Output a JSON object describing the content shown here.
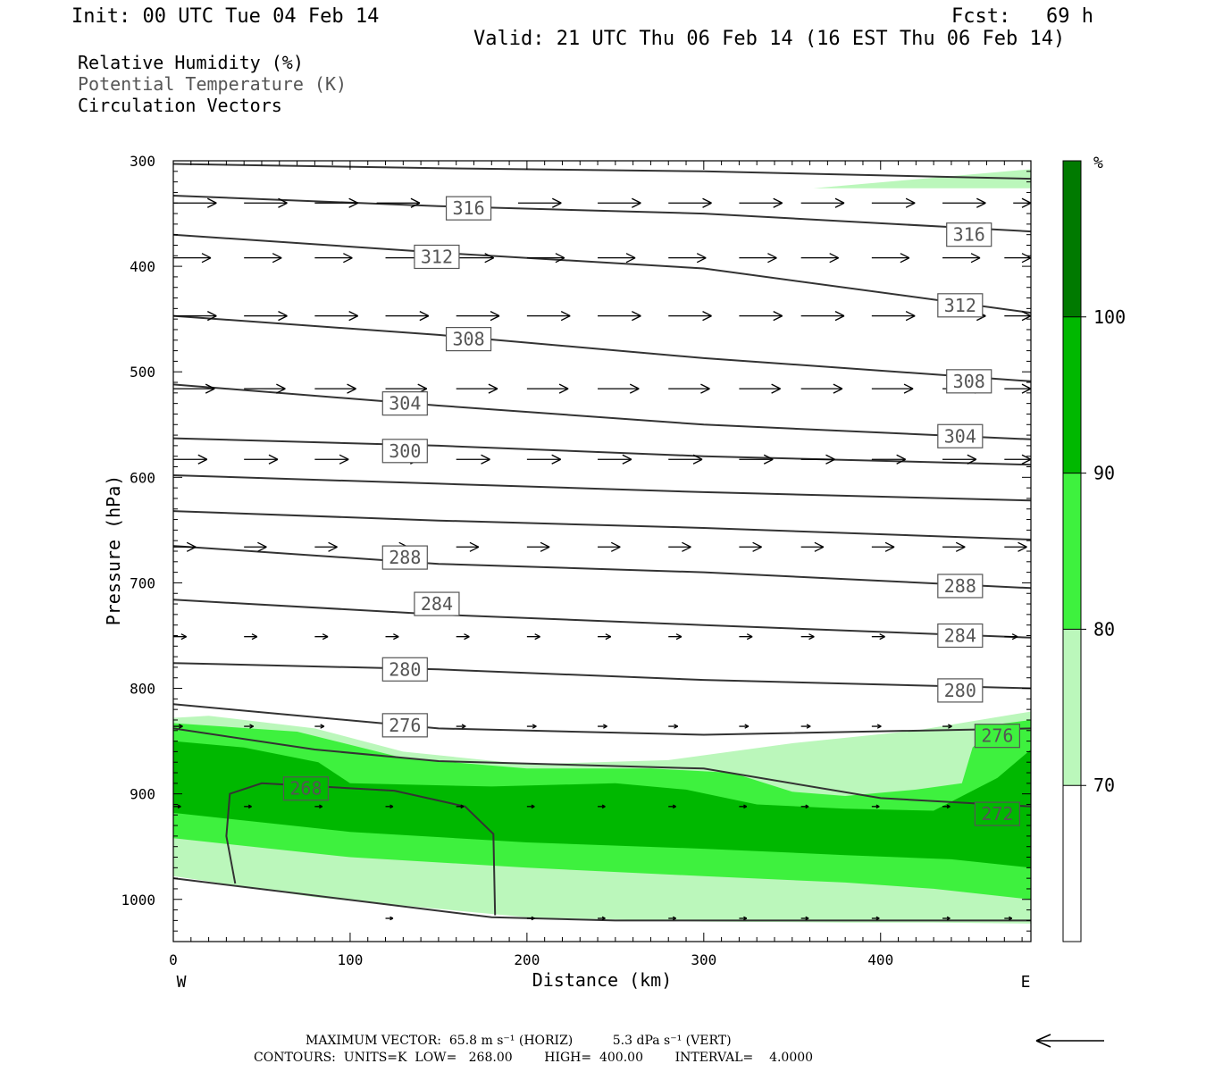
{
  "header": {
    "init": "Init: 00 UTC Tue 04 Feb 14",
    "fcst": "Fcst:   69 h",
    "valid": "Valid: 21 UTC Thu 06 Feb 14 (16 EST Thu 06 Feb 14)"
  },
  "legend": {
    "rh": "Relative Humidity (%)",
    "theta": "Potential Temperature (K)",
    "vectors": "Circulation Vectors"
  },
  "colors": {
    "rh70": "#bbf7bb",
    "rh80": "#3ef13e",
    "rh90": "#00b800",
    "rh100": "#007a00",
    "contour": "#333333",
    "theta_label": "#555555"
  },
  "footer": {
    "max_vector": "MAXIMUM VECTOR:  65.8 m s⁻¹ (HORIZ)          5.3 dPa s⁻¹ (VERT)",
    "contours": "CONTOURS:  UNITS=K  LOW=   268.00        HIGH=  400.00        INTERVAL=    4.0000"
  },
  "chart_data": {
    "type": "contour",
    "xlabel": "Distance (km)",
    "ylabel": "Pressure (hPa)",
    "xlim": [
      0,
      485
    ],
    "ylim": [
      1040,
      300
    ],
    "x_ticks": [
      0,
      100,
      200,
      300,
      400
    ],
    "y_ticks": [
      300,
      400,
      500,
      600,
      700,
      800,
      900,
      1000
    ],
    "x_end_labels": {
      "left": "W",
      "right": "E"
    },
    "colorbar": {
      "unit": "%",
      "levels": [
        60,
        70,
        80,
        90,
        100,
        110
      ],
      "labels": [
        70,
        80,
        90,
        100
      ],
      "colors": [
        "#ffffff",
        "#bbf7bb",
        "#3ef13e",
        "#00b800",
        "#007a00"
      ]
    },
    "rh_regions": [
      {
        "level": 70,
        "points": [
          [
            362,
            326
          ],
          [
            485,
            308
          ],
          [
            485,
            326
          ]
        ]
      },
      {
        "level": 70,
        "points": [
          [
            0,
            828
          ],
          [
            20,
            826
          ],
          [
            80,
            838
          ],
          [
            130,
            860
          ],
          [
            200,
            872
          ],
          [
            280,
            868
          ],
          [
            350,
            852
          ],
          [
            420,
            840
          ],
          [
            485,
            822
          ],
          [
            485,
            1023
          ],
          [
            430,
            1022
          ],
          [
            380,
            1022
          ],
          [
            300,
            1021
          ],
          [
            200,
            1017
          ],
          [
            80,
            998
          ],
          [
            0,
            978
          ]
        ]
      },
      {
        "level": 80,
        "points": [
          [
            0,
            833
          ],
          [
            70,
            841
          ],
          [
            130,
            866
          ],
          [
            200,
            876
          ],
          [
            270,
            876
          ],
          [
            316,
            880
          ],
          [
            350,
            898
          ],
          [
            380,
            902
          ],
          [
            420,
            896
          ],
          [
            446,
            890
          ],
          [
            452,
            856
          ],
          [
            466,
            834
          ],
          [
            485,
            830
          ],
          [
            485,
            1000
          ],
          [
            430,
            990
          ],
          [
            380,
            984
          ],
          [
            300,
            978
          ],
          [
            200,
            970
          ],
          [
            100,
            960
          ],
          [
            0,
            942
          ]
        ]
      },
      {
        "level": 90,
        "points": [
          [
            0,
            850
          ],
          [
            40,
            856
          ],
          [
            82,
            870
          ],
          [
            100,
            890
          ],
          [
            180,
            893
          ],
          [
            250,
            890
          ],
          [
            290,
            896
          ],
          [
            330,
            910
          ],
          [
            380,
            914
          ],
          [
            430,
            916
          ],
          [
            466,
            885
          ],
          [
            485,
            858
          ],
          [
            485,
            970
          ],
          [
            440,
            962
          ],
          [
            380,
            958
          ],
          [
            300,
            952
          ],
          [
            200,
            946
          ],
          [
            100,
            936
          ],
          [
            0,
            918
          ]
        ]
      }
    ],
    "theta_isolines": [
      {
        "value": 316,
        "points": [
          [
            0,
            303
          ],
          [
            150,
            307
          ],
          [
            300,
            310
          ],
          [
            485,
            317
          ]
        ]
      },
      {
        "value": 316,
        "points": [
          [
            0,
            333
          ],
          [
            150,
            343
          ],
          [
            300,
            350
          ],
          [
            485,
            367
          ]
        ]
      },
      {
        "value": 312,
        "points": [
          [
            0,
            370
          ],
          [
            150,
            387
          ],
          [
            300,
            402
          ],
          [
            485,
            444
          ]
        ]
      },
      {
        "value": 308,
        "points": [
          [
            0,
            447
          ],
          [
            150,
            465
          ],
          [
            300,
            487
          ],
          [
            485,
            509
          ]
        ]
      },
      {
        "value": 304,
        "points": [
          [
            0,
            512
          ],
          [
            150,
            532
          ],
          [
            300,
            550
          ],
          [
            485,
            564
          ]
        ]
      },
      {
        "value": 300,
        "points": [
          [
            0,
            563
          ],
          [
            150,
            570
          ],
          [
            300,
            580
          ],
          [
            485,
            588
          ]
        ]
      },
      {
        "value": 296,
        "points": [
          [
            0,
            598
          ],
          [
            150,
            606
          ],
          [
            300,
            614
          ],
          [
            485,
            622
          ]
        ]
      },
      {
        "value": 292,
        "points": [
          [
            0,
            632
          ],
          [
            150,
            641
          ],
          [
            300,
            648
          ],
          [
            485,
            659
          ]
        ]
      },
      {
        "value": 288,
        "points": [
          [
            0,
            665
          ],
          [
            150,
            682
          ],
          [
            300,
            690
          ],
          [
            485,
            705
          ]
        ]
      },
      {
        "value": 284,
        "points": [
          [
            0,
            716
          ],
          [
            150,
            730
          ],
          [
            300,
            740
          ],
          [
            485,
            752
          ]
        ]
      },
      {
        "value": 280,
        "points": [
          [
            0,
            776
          ],
          [
            150,
            782
          ],
          [
            300,
            792
          ],
          [
            485,
            800
          ]
        ]
      },
      {
        "value": 276,
        "points": [
          [
            0,
            815
          ],
          [
            150,
            838
          ],
          [
            300,
            844
          ],
          [
            485,
            838
          ]
        ]
      },
      {
        "value": 272,
        "points": [
          [
            0,
            838
          ],
          [
            80,
            858
          ],
          [
            150,
            869
          ],
          [
            300,
            876
          ],
          [
            400,
            904
          ],
          [
            485,
            912
          ]
        ]
      },
      {
        "value": 268,
        "points": [
          [
            0,
            980
          ],
          [
            180,
            1017
          ],
          [
            250,
            1020
          ],
          [
            485,
            1020
          ]
        ]
      },
      {
        "value": 268,
        "points": [
          [
            35,
            985
          ],
          [
            30,
            940
          ],
          [
            32,
            900
          ],
          [
            50,
            890
          ],
          [
            125,
            897
          ],
          [
            165,
            912
          ],
          [
            181,
            938
          ],
          [
            182,
            1015
          ]
        ]
      }
    ],
    "theta_labels": [
      {
        "value": 316,
        "x": 167,
        "p": 345
      },
      {
        "value": 316,
        "x": 450,
        "p": 370
      },
      {
        "value": 312,
        "x": 149,
        "p": 391
      },
      {
        "value": 312,
        "x": 445,
        "p": 437
      },
      {
        "value": 308,
        "x": 167,
        "p": 469
      },
      {
        "value": 308,
        "x": 450,
        "p": 509
      },
      {
        "value": 304,
        "x": 131,
        "p": 530
      },
      {
        "value": 304,
        "x": 445,
        "p": 561
      },
      {
        "value": 300,
        "x": 131,
        "p": 575
      },
      {
        "value": 288,
        "x": 131,
        "p": 676
      },
      {
        "value": 288,
        "x": 445,
        "p": 703
      },
      {
        "value": 284,
        "x": 149,
        "p": 720
      },
      {
        "value": 284,
        "x": 445,
        "p": 750
      },
      {
        "value": 280,
        "x": 131,
        "p": 782
      },
      {
        "value": 280,
        "x": 445,
        "p": 802
      },
      {
        "value": 276,
        "x": 131,
        "p": 835
      },
      {
        "value": 276,
        "x": 466,
        "p": 845
      },
      {
        "value": 272,
        "x": 466,
        "p": 919
      },
      {
        "value": 268,
        "x": 75,
        "p": 895
      }
    ],
    "vectors": [
      {
        "p": 340,
        "length": 23,
        "x": [
          0,
          40,
          80,
          115,
          155,
          195,
          240,
          280,
          320,
          355,
          395,
          435,
          475
        ]
      },
      {
        "p": 392,
        "length": 20,
        "x": [
          0,
          40,
          80,
          120,
          160,
          200,
          240,
          280,
          320,
          355,
          395,
          435,
          470
        ]
      },
      {
        "p": 447,
        "length": 23,
        "x": [
          0,
          40,
          80,
          120,
          160,
          200,
          240,
          280,
          320,
          355,
          395,
          435,
          470
        ]
      },
      {
        "p": 516,
        "length": 22,
        "x": [
          0,
          40,
          80,
          120,
          160,
          200,
          240,
          280,
          320,
          355,
          395,
          435,
          470
        ]
      },
      {
        "p": 583,
        "length": 18,
        "x": [
          0,
          40,
          80,
          120,
          160,
          200,
          240,
          280,
          320,
          355,
          395,
          435,
          470
        ]
      },
      {
        "p": 666,
        "length": 12,
        "x": [
          0,
          40,
          80,
          120,
          160,
          200,
          240,
          280,
          320,
          355,
          395,
          435,
          470
        ]
      },
      {
        "p": 751,
        "length": 7,
        "x": [
          0,
          40,
          80,
          120,
          160,
          200,
          240,
          280,
          320,
          355,
          395,
          435,
          470
        ]
      },
      {
        "p": 836,
        "length": 5,
        "x": [
          0,
          40,
          80,
          120,
          160,
          200,
          240,
          280,
          320,
          355,
          395,
          435,
          470
        ]
      },
      {
        "p": 912,
        "length": 4,
        "x": [
          0,
          40,
          80,
          120,
          160,
          200,
          240,
          280,
          320,
          355,
          395,
          435,
          470
        ]
      },
      {
        "p": 1018,
        "length": 4,
        "x": [
          120,
          200,
          240,
          280,
          320,
          355,
          395,
          435,
          470
        ]
      }
    ]
  }
}
